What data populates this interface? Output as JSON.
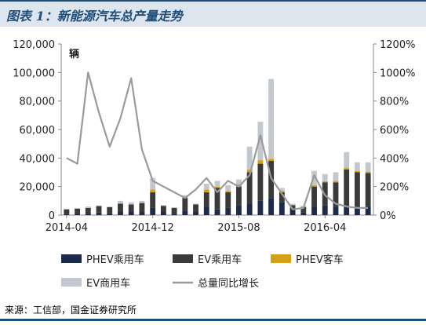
{
  "header": {
    "title": "图表 1：新能源汽车总产量走势"
  },
  "source": "来源：工信部，国金证券研究所",
  "colors": {
    "phev_car": "#1c2b4a",
    "ev_car": "#3a3a3a",
    "phev_bus": "#d4a017",
    "ev_commercial": "#c3c7ce",
    "growth": "#9a9a9a"
  },
  "chart_data": {
    "type": "bar",
    "stacked": true,
    "title": "",
    "ylabel": "辆",
    "xlabel": "",
    "y_left_range": [
      0,
      120000
    ],
    "y_left_ticks": [
      "0",
      "20,000",
      "40,000",
      "60,000",
      "80,000",
      "100,000",
      "120,000"
    ],
    "y_right_range": [
      0,
      12
    ],
    "y_right_ticks": [
      "0%",
      "200%",
      "400%",
      "600%",
      "800%",
      "1000%",
      "1200%"
    ],
    "x_tick_labels": [
      "2014-04",
      "2014-12",
      "2015-08",
      "2016-04"
    ],
    "x_tick_positions": [
      0,
      8,
      16,
      24
    ],
    "grid": false,
    "legend_position": "bottom",
    "categories": [
      "2014-04",
      "2014-05",
      "2014-06",
      "2014-07",
      "2014-08",
      "2014-09",
      "2014-10",
      "2014-11",
      "2014-12",
      "2015-01",
      "2015-02",
      "2015-03",
      "2015-04",
      "2015-05",
      "2015-06",
      "2015-07",
      "2015-08",
      "2015-09",
      "2015-10",
      "2015-11",
      "2015-12",
      "2016-01",
      "2016-02",
      "2016-03",
      "2016-04",
      "2016-05",
      "2016-06",
      "2016-07",
      "2016-08"
    ],
    "series": [
      {
        "name": "PHEV乘用车",
        "kind": "bar",
        "color": "#1c2b4a",
        "values": [
          1000,
          1500,
          1500,
          1800,
          1500,
          2500,
          2500,
          2500,
          5000,
          2500,
          1500,
          3000,
          2500,
          6000,
          4000,
          5000,
          7000,
          8000,
          10000,
          12000,
          9000,
          5000,
          2000,
          6000,
          7000,
          6000,
          7000,
          6000,
          6500
        ]
      },
      {
        "name": "EV乘用车",
        "kind": "bar",
        "color": "#3a3a3a",
        "values": [
          3000,
          3000,
          3500,
          4500,
          4000,
          5500,
          5000,
          6000,
          11000,
          4000,
          3500,
          9000,
          5000,
          10000,
          15000,
          11000,
          13000,
          22000,
          26000,
          26000,
          7000,
          2000,
          3500,
          14000,
          16000,
          17000,
          25000,
          24000,
          23000
        ]
      },
      {
        "name": "PHEV客车",
        "kind": "bar",
        "color": "#d4a017",
        "values": [
          0,
          0,
          0,
          0,
          0,
          0,
          0,
          0,
          2000,
          0,
          0,
          1000,
          0,
          2000,
          1000,
          1000,
          1500,
          2000,
          2500,
          1500,
          1000,
          0,
          500,
          1000,
          800,
          1000,
          1200,
          1000,
          1000
        ]
      },
      {
        "name": "EV商用车",
        "kind": "bar",
        "color": "#c3c7ce",
        "values": [
          500,
          500,
          1000,
          500,
          500,
          2000,
          1500,
          1500,
          8000,
          500,
          500,
          1000,
          500,
          4000,
          4000,
          4000,
          3500,
          16000,
          27000,
          56000,
          2000,
          1000,
          500,
          10000,
          5000,
          6000,
          11000,
          6000,
          6500
        ]
      },
      {
        "name": "总量同比增长",
        "kind": "line",
        "axis": "right",
        "color": "#9a9a9a",
        "values": [
          4.0,
          3.6,
          10.0,
          7.2,
          4.8,
          6.8,
          9.6,
          4.6,
          2.4,
          2.0,
          1.6,
          1.2,
          1.8,
          2.6,
          1.6,
          2.4,
          2.0,
          2.8,
          5.6,
          2.6,
          1.5,
          0.4,
          0.5,
          2.8,
          1.4,
          0.8,
          0.6,
          0.5,
          0.5
        ]
      }
    ]
  }
}
